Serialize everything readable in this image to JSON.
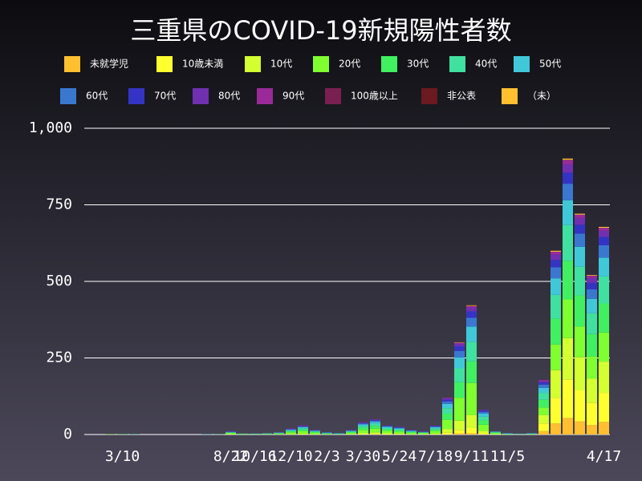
{
  "chart_data": {
    "type": "stacked-bar",
    "title": "三重県のCOVID-19新規陽性者数",
    "categories": [
      null,
      null,
      null,
      "3/10",
      null,
      null,
      null,
      null,
      null,
      null,
      null,
      null,
      "8/22",
      null,
      "10/16",
      null,
      null,
      "12/10",
      null,
      null,
      "2/3",
      null,
      null,
      "3/30",
      null,
      null,
      "5/24",
      null,
      null,
      "7/18",
      null,
      null,
      "9/11",
      null,
      null,
      "11/5",
      null,
      null,
      null,
      null,
      null,
      null,
      null,
      "4/17"
    ],
    "ylim": [
      0,
      1000
    ],
    "yticks": [
      0,
      250,
      500,
      750,
      {
        "value": 1000,
        "label": "1,000"
      }
    ],
    "grid": true,
    "series": [
      {
        "name": "未就学児",
        "color": "#ffbf30",
        "values": [
          0,
          0,
          0,
          0,
          0,
          0,
          0,
          0,
          0,
          0,
          0,
          0,
          0,
          0,
          0,
          0,
          0,
          0,
          0,
          0,
          0,
          0,
          0,
          0,
          0,
          0,
          0,
          0,
          0,
          0,
          1,
          3,
          4,
          1,
          0,
          0,
          0,
          0,
          11,
          36,
          54,
          43,
          31,
          41
        ]
      },
      {
        "name": "10歳未満",
        "color": "#ffff30",
        "values": [
          0,
          0,
          0,
          0,
          0,
          0,
          0,
          0,
          0,
          0,
          0,
          0,
          0,
          0,
          0,
          0,
          0,
          0,
          0,
          0,
          0,
          0,
          0,
          1,
          2,
          1,
          1,
          0,
          0,
          0,
          5,
          12,
          17,
          3,
          0,
          0,
          0,
          0,
          25,
          84,
          126,
          101,
          73,
          95
        ]
      },
      {
        "name": "10代",
        "color": "#d4ff30",
        "values": [
          0,
          0,
          0,
          0,
          0,
          0,
          0,
          0,
          0,
          0,
          0,
          0,
          1,
          0,
          0,
          0,
          0,
          2,
          3,
          1,
          0,
          0,
          1,
          4,
          5,
          3,
          2,
          1,
          1,
          3,
          12,
          30,
          42,
          8,
          1,
          0,
          0,
          0,
          27,
          90,
          135,
          108,
          78,
          102
        ]
      },
      {
        "name": "20代",
        "color": "#80ff30",
        "values": [
          0,
          0,
          1,
          0,
          0,
          0,
          0,
          0,
          0,
          0,
          0,
          1,
          3,
          1,
          1,
          1,
          2,
          5,
          8,
          4,
          2,
          1,
          4,
          10,
          12,
          8,
          6,
          4,
          3,
          8,
          30,
          75,
          105,
          20,
          3,
          1,
          1,
          1,
          25,
          84,
          126,
          101,
          73,
          95
        ]
      },
      {
        "name": "30代",
        "color": "#40f060",
        "values": [
          0,
          0,
          0,
          1,
          0,
          0,
          0,
          0,
          0,
          0,
          0,
          0,
          2,
          1,
          0,
          1,
          2,
          3,
          5,
          3,
          1,
          1,
          3,
          7,
          9,
          5,
          4,
          3,
          2,
          5,
          20,
          51,
          71,
          14,
          2,
          1,
          0,
          1,
          25,
          84,
          126,
          101,
          73,
          95
        ]
      },
      {
        "name": "40代",
        "color": "#40e0a0",
        "values": [
          0,
          0,
          0,
          0,
          1,
          0,
          0,
          0,
          0,
          0,
          0,
          0,
          1,
          1,
          1,
          1,
          1,
          3,
          4,
          2,
          2,
          1,
          2,
          6,
          7,
          4,
          4,
          2,
          1,
          4,
          18,
          45,
          63,
          12,
          2,
          1,
          1,
          1,
          23,
          78,
          117,
          94,
          68,
          88
        ]
      },
      {
        "name": "50代",
        "color": "#40c8d8",
        "values": [
          0,
          0,
          0,
          0,
          0,
          0,
          0,
          0,
          0,
          0,
          1,
          0,
          1,
          0,
          1,
          1,
          1,
          2,
          4,
          2,
          1,
          1,
          2,
          5,
          6,
          4,
          3,
          2,
          1,
          4,
          14,
          36,
          50,
          10,
          1,
          1,
          0,
          1,
          16,
          54,
          81,
          65,
          47,
          61
        ]
      },
      {
        "name": "60代",
        "color": "#3a78d0",
        "values": [
          0,
          0,
          0,
          0,
          0,
          0,
          0,
          0,
          0,
          0,
          0,
          1,
          1,
          0,
          0,
          0,
          1,
          2,
          2,
          1,
          1,
          0,
          1,
          3,
          4,
          2,
          2,
          1,
          1,
          2,
          8,
          21,
          29,
          6,
          1,
          0,
          1,
          0,
          11,
          36,
          54,
          43,
          31,
          41
        ]
      },
      {
        "name": "70代",
        "color": "#3434c4",
        "values": [
          0,
          0,
          0,
          0,
          0,
          0,
          0,
          0,
          0,
          0,
          0,
          0,
          1,
          0,
          0,
          0,
          0,
          1,
          2,
          1,
          1,
          1,
          1,
          2,
          3,
          2,
          2,
          1,
          1,
          2,
          6,
          15,
          21,
          4,
          0,
          1,
          0,
          1,
          7,
          24,
          36,
          29,
          21,
          27
        ]
      },
      {
        "name": "80代",
        "color": "#7030b0",
        "values": [
          0,
          0,
          0,
          0,
          0,
          0,
          0,
          0,
          0,
          0,
          0,
          0,
          1,
          0,
          0,
          0,
          1,
          1,
          1,
          1,
          0,
          0,
          1,
          1,
          1,
          1,
          1,
          1,
          1,
          1,
          4,
          9,
          13,
          2,
          0,
          0,
          0,
          0,
          5,
          18,
          27,
          22,
          16,
          20
        ]
      },
      {
        "name": "90代",
        "color": "#9a2a9a",
        "values": [
          0,
          0,
          0,
          0,
          0,
          0,
          0,
          0,
          0,
          0,
          0,
          0,
          0,
          0,
          0,
          0,
          0,
          1,
          1,
          0,
          0,
          0,
          0,
          1,
          1,
          0,
          0,
          0,
          0,
          0,
          2,
          3,
          4,
          0,
          0,
          0,
          0,
          0,
          3,
          9,
          14,
          11,
          8,
          10
        ]
      },
      {
        "name": "100歳以上",
        "color": "#7a2050",
        "values": [
          0,
          0,
          0,
          0,
          0,
          0,
          0,
          0,
          0,
          0,
          0,
          0,
          0,
          0,
          0,
          0,
          0,
          0,
          0,
          0,
          0,
          0,
          0,
          0,
          0,
          0,
          0,
          0,
          0,
          0,
          0,
          0,
          0,
          0,
          0,
          0,
          0,
          0,
          0,
          0,
          1,
          0,
          0,
          0
        ]
      },
      {
        "name": "非公表",
        "color": "#6a1a20",
        "values": [
          0,
          0,
          0,
          0,
          0,
          0,
          0,
          0,
          0,
          0,
          0,
          0,
          0,
          0,
          0,
          0,
          0,
          0,
          0,
          0,
          0,
          0,
          0,
          0,
          0,
          0,
          0,
          0,
          0,
          0,
          0,
          0,
          1,
          0,
          0,
          0,
          0,
          0,
          0,
          0,
          0,
          0,
          0,
          0
        ]
      },
      {
        "name": "（未）",
        "color": "#ffc030",
        "values": [
          0,
          0,
          0,
          0,
          0,
          0,
          0,
          0,
          0,
          0,
          0,
          0,
          0,
          0,
          0,
          0,
          0,
          0,
          0,
          0,
          0,
          0,
          0,
          0,
          0,
          0,
          0,
          0,
          0,
          0,
          0,
          1,
          2,
          0,
          0,
          0,
          0,
          0,
          0,
          3,
          4,
          3,
          2,
          3
        ]
      }
    ]
  }
}
